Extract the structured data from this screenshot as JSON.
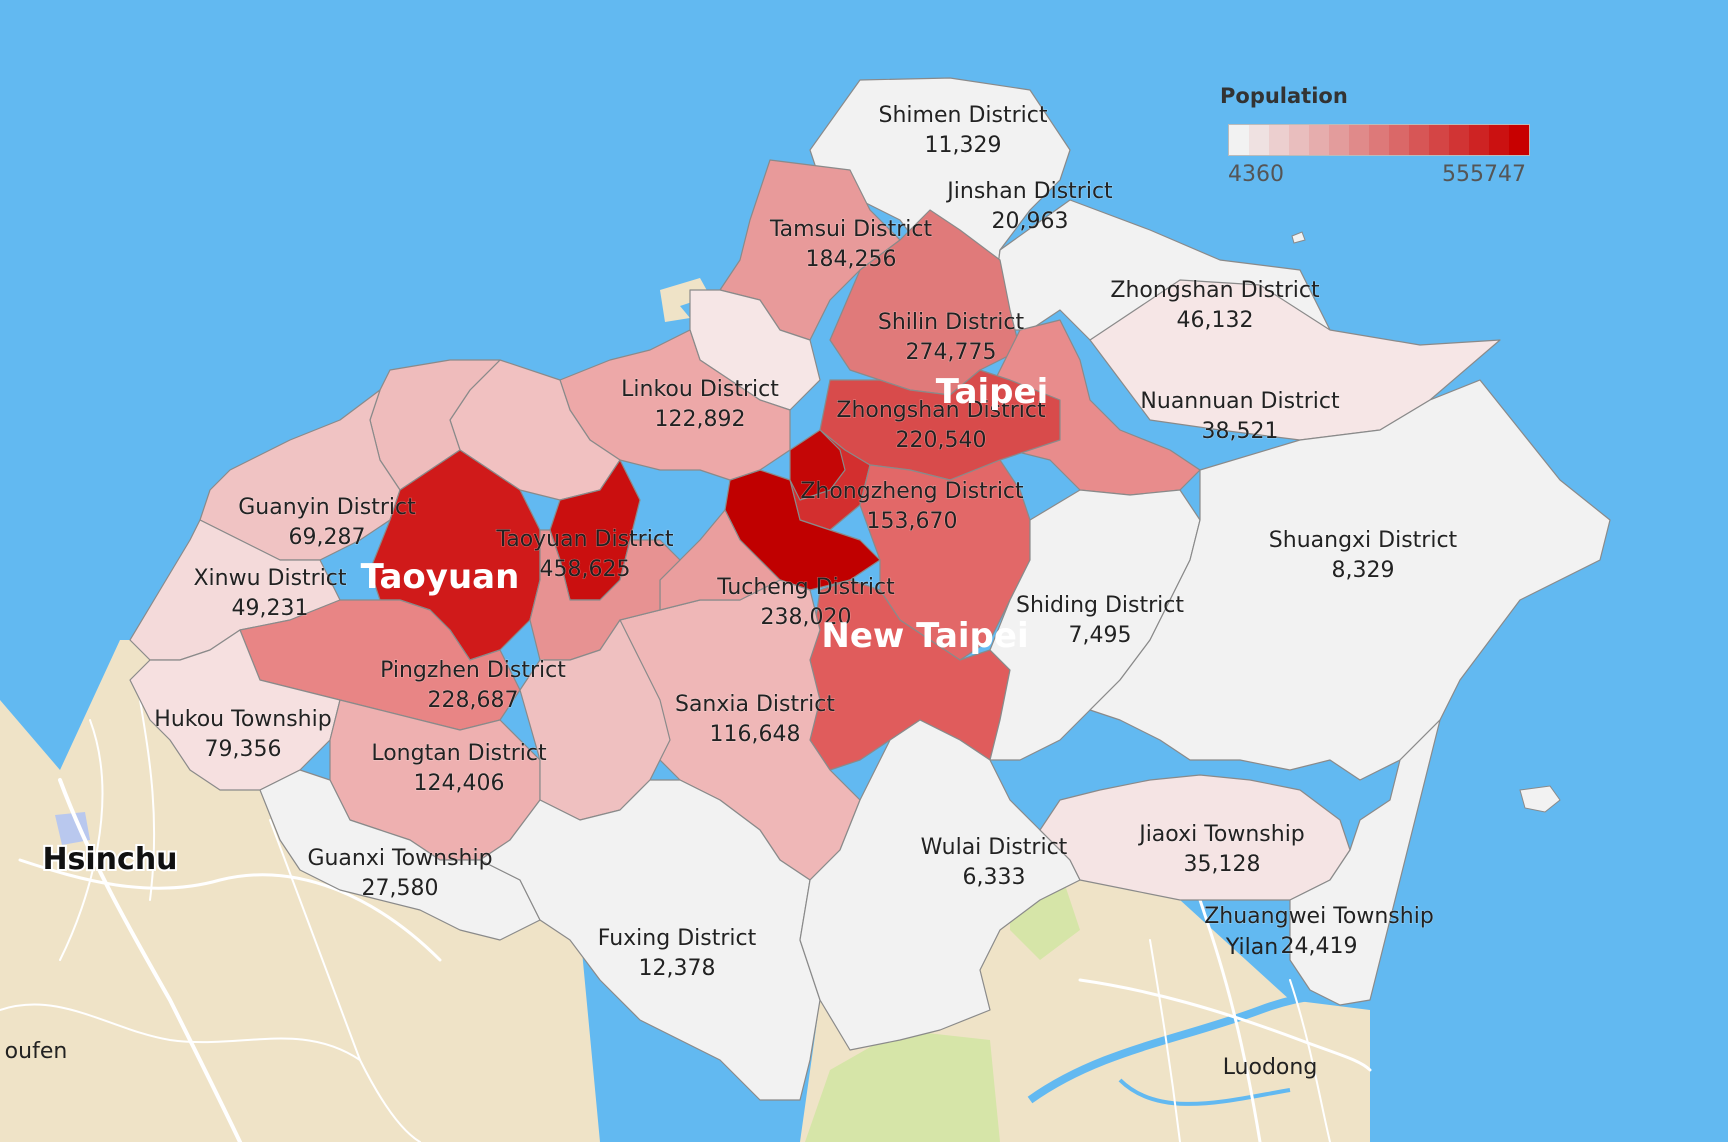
{
  "map": {
    "legend": {
      "title": "Population",
      "min_label": "4360",
      "max_label": "555747",
      "min": 4360,
      "max": 555747,
      "color_low": "#f2f2f2",
      "color_high": "#c80000"
    },
    "cities": {
      "taoyuan": "Taoyuan",
      "taipei": "Taipei",
      "new_taipei": "New Taipei"
    },
    "places": {
      "hsinchu": "Hsinchu",
      "toufen": "oufen",
      "yilan": "Yilan",
      "luodong": "Luodong"
    },
    "districts": [
      {
        "id": "shimen",
        "name": "Shimen District",
        "value_label": "11,329",
        "population": 11329
      },
      {
        "id": "jinshan",
        "name": "Jinshan District",
        "value_label": "20,963",
        "population": 20963
      },
      {
        "id": "tamsui",
        "name": "Tamsui District",
        "value_label": "184,256",
        "population": 184256
      },
      {
        "id": "zhongshan-ntpc",
        "name": "Zhongshan District",
        "value_label": "46,132",
        "population": 46132
      },
      {
        "id": "shilin",
        "name": "Shilin District",
        "value_label": "274,775",
        "population": 274775
      },
      {
        "id": "linkou",
        "name": "Linkou District",
        "value_label": "122,892",
        "population": 122892
      },
      {
        "id": "nuannuan",
        "name": "Nuannuan District",
        "value_label": "38,521",
        "population": 38521
      },
      {
        "id": "zhongshan-tpe",
        "name": "Zhongshan District",
        "value_label": "220,540",
        "population": 220540
      },
      {
        "id": "zhongzheng",
        "name": "Zhongzheng District",
        "value_label": "153,670",
        "population": 153670
      },
      {
        "id": "guanyin",
        "name": "Guanyin District",
        "value_label": "69,287",
        "population": 69287
      },
      {
        "id": "taoyuan",
        "name": "Taoyuan District",
        "value_label": "458,625",
        "population": 458625
      },
      {
        "id": "shuangxi",
        "name": "Shuangxi District",
        "value_label": "8,329",
        "population": 8329
      },
      {
        "id": "xinwu",
        "name": "Xinwu District",
        "value_label": "49,231",
        "population": 49231
      },
      {
        "id": "tucheng",
        "name": "Tucheng District",
        "value_label": "238,020",
        "population": 238020
      },
      {
        "id": "shiding",
        "name": "Shiding District",
        "value_label": "7,495",
        "population": 7495
      },
      {
        "id": "pingzhen",
        "name": "Pingzhen District",
        "value_label": "228,687",
        "population": 228687
      },
      {
        "id": "sanxia",
        "name": "Sanxia District",
        "value_label": "116,648",
        "population": 116648
      },
      {
        "id": "hukou",
        "name": "Hukou Township",
        "value_label": "79,356",
        "population": 79356
      },
      {
        "id": "longtan",
        "name": "Longtan District",
        "value_label": "124,406",
        "population": 124406
      },
      {
        "id": "wulai",
        "name": "Wulai District",
        "value_label": "6,333",
        "population": 6333
      },
      {
        "id": "jiaoxi",
        "name": "Jiaoxi Township",
        "value_label": "35,128",
        "population": 35128
      },
      {
        "id": "guanxi",
        "name": "Guanxi Township",
        "value_label": "27,580",
        "population": 27580
      },
      {
        "id": "zhuangwei",
        "name": "Zhuangwei Township",
        "value_label": "24,419",
        "population": 24419
      },
      {
        "id": "fuxing",
        "name": "Fuxing District",
        "value_label": "12,378",
        "population": 12378
      }
    ]
  }
}
